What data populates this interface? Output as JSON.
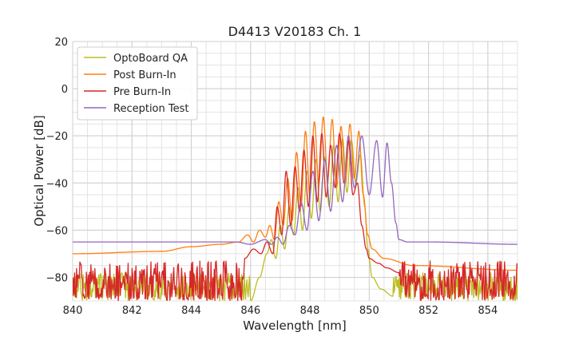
{
  "chart_data": {
    "type": "line",
    "title": "D4413 V20183 Ch. 1",
    "xlabel": "Wavelength [nm]",
    "ylabel": "Optical Power [dB]",
    "xlim": [
      840,
      855
    ],
    "ylim": [
      -90,
      20
    ],
    "xticks": [
      840,
      842,
      844,
      846,
      848,
      850,
      852,
      854
    ],
    "yticks": [
      20,
      0,
      -20,
      -40,
      -60,
      -80
    ],
    "xtick_labels": [
      "840",
      "842",
      "844",
      "846",
      "848",
      "850",
      "852",
      "854"
    ],
    "ytick_labels": [
      "20",
      "0",
      "−20",
      "−40",
      "−60",
      "−80"
    ],
    "grid": true,
    "legend_position": "top-left",
    "series": [
      {
        "name": "OptoBoard QA",
        "color": "#bcbd22",
        "noise_floor": [
          -90,
          -78
        ],
        "x": [
          846.0,
          846.3,
          846.55,
          846.7,
          846.85,
          847.0,
          847.15,
          847.3,
          847.45,
          847.6,
          847.75,
          847.9,
          848.05,
          848.2,
          848.35,
          848.5,
          848.65,
          848.8,
          848.95,
          849.1,
          849.25,
          849.4,
          849.55,
          849.7,
          849.85,
          849.95,
          850.1,
          850.4,
          850.8
        ],
        "y": [
          -90,
          -80,
          -70,
          -64,
          -72,
          -58,
          -68,
          -50,
          -62,
          -42,
          -60,
          -35,
          -55,
          -30,
          -52,
          -29,
          -50,
          -24,
          -48,
          -21,
          -44,
          -22,
          -40,
          -28,
          -50,
          -68,
          -80,
          -85,
          -88
        ]
      },
      {
        "name": "Post Burn-In",
        "color": "#ff7f0e",
        "noise_floor": [
          -73,
          -68
        ],
        "x": [
          840.0,
          843.0,
          844.0,
          845.0,
          845.6,
          845.9,
          846.1,
          846.3,
          846.5,
          846.65,
          846.8,
          846.95,
          847.1,
          847.25,
          847.4,
          847.55,
          847.7,
          847.85,
          848.0,
          848.15,
          848.3,
          848.45,
          848.6,
          848.75,
          848.9,
          849.05,
          849.2,
          849.35,
          849.5,
          849.65,
          849.8,
          849.95,
          850.1,
          850.5,
          851.5,
          855.0
        ],
        "y": [
          -70,
          -69,
          -67,
          -66,
          -65,
          -62,
          -65,
          -60,
          -63,
          -58,
          -64,
          -48,
          -58,
          -38,
          -56,
          -27,
          -50,
          -18,
          -45,
          -14,
          -40,
          -12,
          -38,
          -13,
          -42,
          -16,
          -40,
          -15,
          -38,
          -18,
          -45,
          -62,
          -68,
          -72,
          -75,
          -77
        ]
      },
      {
        "name": "Pre Burn-In",
        "color": "#d62728",
        "noise_floor": [
          -90,
          -73
        ],
        "x": [
          845.8,
          846.1,
          846.35,
          846.55,
          846.75,
          846.9,
          847.05,
          847.2,
          847.35,
          847.5,
          847.65,
          847.8,
          847.95,
          848.1,
          848.25,
          848.4,
          848.55,
          848.7,
          848.85,
          849.0,
          849.15,
          849.3,
          849.45,
          849.6,
          849.75,
          849.9,
          850.0,
          850.3,
          850.6,
          851.0
        ],
        "y": [
          -72,
          -68,
          -70,
          -65,
          -70,
          -50,
          -62,
          -35,
          -58,
          -33,
          -52,
          -26,
          -50,
          -20,
          -48,
          -19,
          -46,
          -24,
          -42,
          -19,
          -40,
          -22,
          -45,
          -40,
          -58,
          -68,
          -72,
          -74,
          -76,
          -78
        ]
      },
      {
        "name": "Reception Test",
        "color": "#9467bd",
        "x": [
          840.0,
          843.0,
          844.5,
          845.5,
          846.0,
          846.5,
          846.7,
          846.9,
          847.1,
          847.3,
          847.5,
          847.7,
          847.9,
          848.1,
          848.3,
          848.5,
          848.7,
          848.9,
          849.1,
          849.3,
          849.5,
          849.75,
          850.0,
          850.25,
          850.45,
          850.6,
          850.75,
          850.9,
          851.0,
          851.3,
          852.0,
          855.0
        ],
        "y": [
          -65,
          -65,
          -65,
          -65,
          -66,
          -64,
          -66,
          -63,
          -66,
          -58,
          -62,
          -48,
          -60,
          -35,
          -56,
          -30,
          -52,
          -24,
          -48,
          -20,
          -42,
          -20,
          -45,
          -22,
          -46,
          -23,
          -40,
          -57,
          -64,
          -65,
          -65,
          -66
        ]
      }
    ]
  }
}
